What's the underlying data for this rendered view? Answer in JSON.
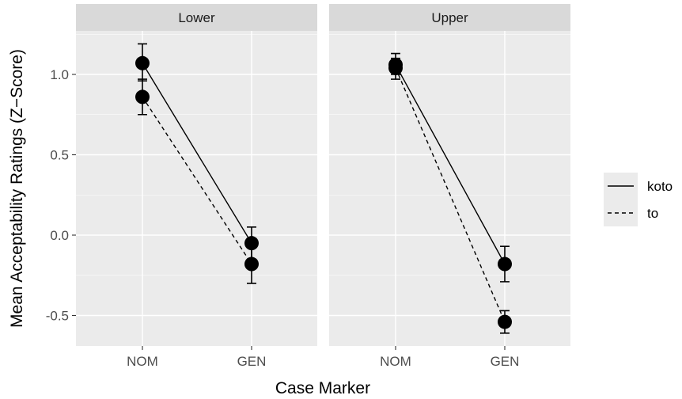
{
  "chart_data": {
    "type": "line",
    "xlabel": "Case Marker",
    "ylabel": "Mean Acceptability Ratings (Z−Score)",
    "categories": [
      "NOM",
      "GEN"
    ],
    "ylim": [
      -0.7,
      1.26
    ],
    "yticks": [
      -0.5,
      0.0,
      0.5,
      1.0
    ],
    "ytick_labels": [
      "-0.5",
      "0.0",
      "0.5",
      "1.0"
    ],
    "grid": true,
    "legend_position": "right",
    "legend": [
      {
        "name": "koto",
        "linetype": "solid"
      },
      {
        "name": "to",
        "linetype": "dashed"
      }
    ],
    "panels": [
      {
        "label": "Lower",
        "series": [
          {
            "name": "koto",
            "values": [
              1.07,
              -0.05
            ],
            "err_low": [
              0.96,
              -0.15
            ],
            "err_high": [
              1.19,
              0.05
            ]
          },
          {
            "name": "to",
            "values": [
              0.86,
              -0.18
            ],
            "err_low": [
              0.75,
              -0.3
            ],
            "err_high": [
              0.97,
              -0.07
            ]
          }
        ]
      },
      {
        "label": "Upper",
        "series": [
          {
            "name": "koto",
            "values": [
              1.06,
              -0.18
            ],
            "err_low": [
              1.0,
              -0.29
            ],
            "err_high": [
              1.13,
              -0.07
            ]
          },
          {
            "name": "to",
            "values": [
              1.04,
              -0.54
            ],
            "err_low": [
              0.97,
              -0.61
            ],
            "err_high": [
              1.1,
              -0.47
            ]
          }
        ]
      }
    ]
  }
}
